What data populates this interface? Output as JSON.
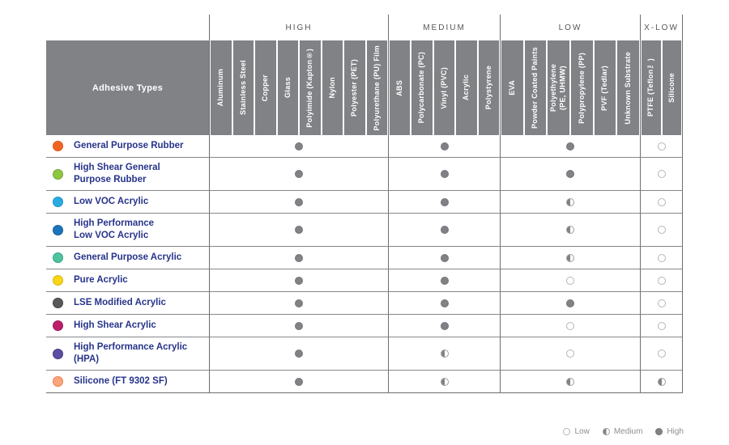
{
  "header": {
    "row_header_label": "Adhesive Types"
  },
  "groups": [
    {
      "label": "HIGH",
      "columns": [
        "Aluminum",
        "Stainless Steel",
        "Copper",
        "Glass",
        "Polyimide (Kapton®)",
        "Nylon",
        "Polyester (PET)",
        "Polyurethane (PU) Film"
      ]
    },
    {
      "label": "MEDIUM",
      "columns": [
        "ABS",
        "Polycarbonate (PC)",
        "Vinyl (PVC)",
        "Acrylic",
        "Polystyrene"
      ]
    },
    {
      "label": "LOW",
      "columns": [
        "EVA",
        "Powder Coated Paints",
        "Polyethylene\n(PE, UHMW)",
        "Polypropylene (PP)",
        "PVF (Tedlar)",
        "Unknown Substrate"
      ]
    },
    {
      "label": "X-LOW",
      "columns": [
        "PTFE (Teflon™)",
        "Silicone"
      ]
    }
  ],
  "rows": [
    {
      "label": "General Purpose Rubber",
      "dot": {
        "fill": "#f26322",
        "edge": "#d65a1f"
      },
      "ratings": [
        "high",
        "high",
        "high",
        "low"
      ]
    },
    {
      "label": "High Shear General\nPurpose Rubber",
      "dot": {
        "fill": "#8dc63f",
        "edge": "#74a834"
      },
      "ratings": [
        "high",
        "high",
        "high",
        "low"
      ]
    },
    {
      "label": "Low VOC Acrylic",
      "dot": {
        "fill": "#29abe2",
        "edge": "#1e93c6"
      },
      "ratings": [
        "high",
        "high",
        "medium",
        "low"
      ]
    },
    {
      "label": "High Performance\nLow VOC Acrylic",
      "dot": {
        "fill": "#1b75bc",
        "edge": "#155e99"
      },
      "ratings": [
        "high",
        "high",
        "medium",
        "low"
      ]
    },
    {
      "label": "General Purpose Acrylic",
      "dot": {
        "fill": "#4fc2a0",
        "edge": "#36a586"
      },
      "ratings": [
        "high",
        "high",
        "medium",
        "low"
      ]
    },
    {
      "label": "Pure Acrylic",
      "dot": {
        "fill": "#f9d616",
        "edge": "#d9b512"
      },
      "ratings": [
        "high",
        "high",
        "low",
        "low"
      ]
    },
    {
      "label": "LSE Modified Acrylic",
      "dot": {
        "fill": "#58595b",
        "edge": "#3f4042"
      },
      "ratings": [
        "high",
        "high",
        "high",
        "low"
      ]
    },
    {
      "label": "High Shear Acrylic",
      "dot": {
        "fill": "#bc1e6a",
        "edge": "#9c1757"
      },
      "ratings": [
        "high",
        "high",
        "low",
        "low"
      ]
    },
    {
      "label": "High Performance Acrylic\n(HPA)",
      "dot": {
        "fill": "#5a4fa2",
        "edge": "#463c85"
      },
      "ratings": [
        "high",
        "medium",
        "low",
        "low"
      ]
    },
    {
      "label": "Silicone (FT 9302 SF)",
      "dot": {
        "fill": "#f9a67f",
        "edge": "#ef7c45"
      },
      "ratings": [
        "high",
        "medium",
        "medium",
        "medium"
      ]
    }
  ],
  "legend": {
    "items": [
      {
        "level": "low",
        "label": "Low"
      },
      {
        "level": "medium",
        "label": "Medium"
      },
      {
        "level": "high",
        "label": "High"
      }
    ]
  },
  "colors": {
    "header_gray": "#808285",
    "group_line": "#6d6e71",
    "row_line": "#85878a",
    "marker_gray": "#808285",
    "label_navy": "#27348b",
    "legend_text": "#8d8f92"
  },
  "chart_data": {
    "type": "table",
    "row_header": "Adhesive Types",
    "rating_scale": [
      "Low",
      "Medium",
      "High"
    ],
    "column_groups": [
      {
        "label": "HIGH",
        "columns": [
          "Aluminum",
          "Stainless Steel",
          "Copper",
          "Glass",
          "Polyimide (Kapton®)",
          "Nylon",
          "Polyester (PET)",
          "Polyurethane (PU) Film"
        ]
      },
      {
        "label": "MEDIUM",
        "columns": [
          "ABS",
          "Polycarbonate (PC)",
          "Vinyl (PVC)",
          "Acrylic",
          "Polystyrene"
        ]
      },
      {
        "label": "LOW",
        "columns": [
          "EVA",
          "Powder Coated Paints",
          "Polyethylene (PE, UHMW)",
          "Polypropylene (PP)",
          "PVF (Tedlar)",
          "Unknown Substrate"
        ]
      },
      {
        "label": "X-LOW",
        "columns": [
          "PTFE (Teflon™)",
          "Silicone"
        ]
      }
    ],
    "rows": [
      {
        "adhesive": "General Purpose Rubber",
        "ratings_by_group": {
          "HIGH": "High",
          "MEDIUM": "High",
          "LOW": "High",
          "X-LOW": "Low"
        }
      },
      {
        "adhesive": "High Shear General Purpose Rubber",
        "ratings_by_group": {
          "HIGH": "High",
          "MEDIUM": "High",
          "LOW": "High",
          "X-LOW": "Low"
        }
      },
      {
        "adhesive": "Low VOC Acrylic",
        "ratings_by_group": {
          "HIGH": "High",
          "MEDIUM": "High",
          "LOW": "Medium",
          "X-LOW": "Low"
        }
      },
      {
        "adhesive": "High Performance Low VOC Acrylic",
        "ratings_by_group": {
          "HIGH": "High",
          "MEDIUM": "High",
          "LOW": "Medium",
          "X-LOW": "Low"
        }
      },
      {
        "adhesive": "General Purpose Acrylic",
        "ratings_by_group": {
          "HIGH": "High",
          "MEDIUM": "High",
          "LOW": "Medium",
          "X-LOW": "Low"
        }
      },
      {
        "adhesive": "Pure Acrylic",
        "ratings_by_group": {
          "HIGH": "High",
          "MEDIUM": "High",
          "LOW": "Low",
          "X-LOW": "Low"
        }
      },
      {
        "adhesive": "LSE Modified Acrylic",
        "ratings_by_group": {
          "HIGH": "High",
          "MEDIUM": "High",
          "LOW": "High",
          "X-LOW": "Low"
        }
      },
      {
        "adhesive": "High Shear Acrylic",
        "ratings_by_group": {
          "HIGH": "High",
          "MEDIUM": "High",
          "LOW": "Low",
          "X-LOW": "Low"
        }
      },
      {
        "adhesive": "High Performance Acrylic (HPA)",
        "ratings_by_group": {
          "HIGH": "High",
          "MEDIUM": "Medium",
          "LOW": "Low",
          "X-LOW": "Low"
        }
      },
      {
        "adhesive": "Silicone (FT 9302 SF)",
        "ratings_by_group": {
          "HIGH": "High",
          "MEDIUM": "Medium",
          "LOW": "Medium",
          "X-LOW": "Medium"
        }
      }
    ],
    "legend": [
      {
        "symbol": "empty-circle",
        "label": "Low"
      },
      {
        "symbol": "half-circle",
        "label": "Medium"
      },
      {
        "symbol": "filled-circle",
        "label": "High"
      }
    ],
    "layout_hints": {
      "legend_position": "bottom-right",
      "one_marker_per_group": true
    }
  }
}
